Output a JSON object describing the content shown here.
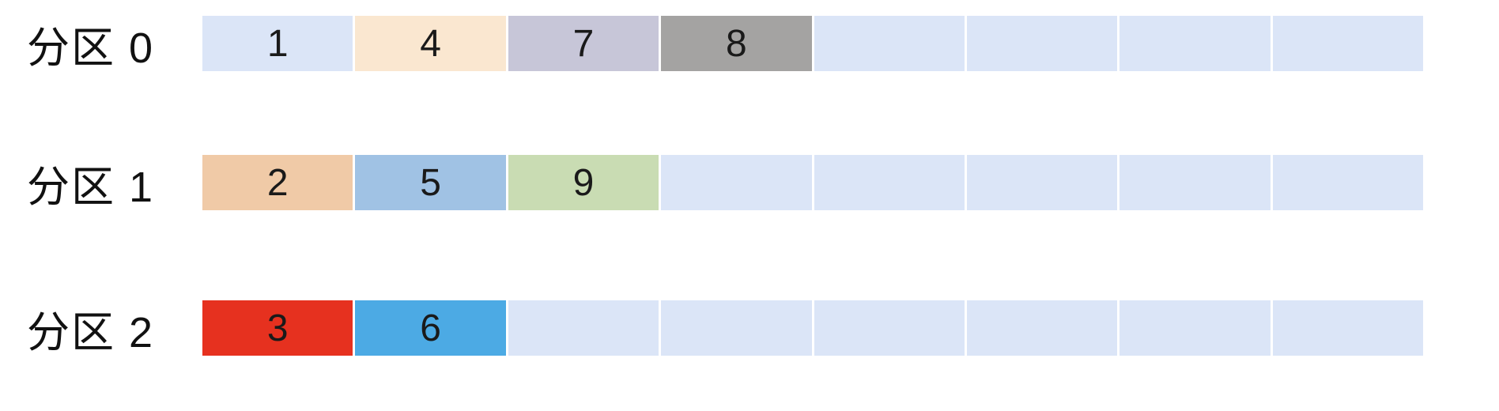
{
  "diagram": {
    "description": "partition-message-distribution-diagram",
    "background_color": "#ffffff",
    "empty_cell_color": "#dbe5f7",
    "number_text_color": "#1a1a1a",
    "label_text_color": "#111111",
    "cells_per_row": 8,
    "rows": [
      {
        "label": "分区 0",
        "cells": [
          {
            "value": "1",
            "color": "#dbe5f7"
          },
          {
            "value": "4",
            "color": "#fae7d0"
          },
          {
            "value": "7",
            "color": "#c7c6d8"
          },
          {
            "value": "8",
            "color": "#a4a3a2"
          },
          {
            "value": "",
            "color": "#dbe5f7"
          },
          {
            "value": "",
            "color": "#dbe5f7"
          },
          {
            "value": "",
            "color": "#dbe5f7"
          },
          {
            "value": "",
            "color": "#dbe5f7"
          }
        ]
      },
      {
        "label": "分区 1",
        "cells": [
          {
            "value": "2",
            "color": "#f0caa7"
          },
          {
            "value": "5",
            "color": "#a0c2e4"
          },
          {
            "value": "9",
            "color": "#c9dcb3"
          },
          {
            "value": "",
            "color": "#dbe5f7"
          },
          {
            "value": "",
            "color": "#dbe5f7"
          },
          {
            "value": "",
            "color": "#dbe5f7"
          },
          {
            "value": "",
            "color": "#dbe5f7"
          },
          {
            "value": "",
            "color": "#dbe5f7"
          }
        ]
      },
      {
        "label": "分区 2",
        "cells": [
          {
            "value": "3",
            "color": "#e6311f"
          },
          {
            "value": "6",
            "color": "#4caae4"
          },
          {
            "value": "",
            "color": "#dbe5f7"
          },
          {
            "value": "",
            "color": "#dbe5f7"
          },
          {
            "value": "",
            "color": "#dbe5f7"
          },
          {
            "value": "",
            "color": "#dbe5f7"
          },
          {
            "value": "",
            "color": "#dbe5f7"
          },
          {
            "value": "",
            "color": "#dbe5f7"
          }
        ]
      }
    ]
  }
}
